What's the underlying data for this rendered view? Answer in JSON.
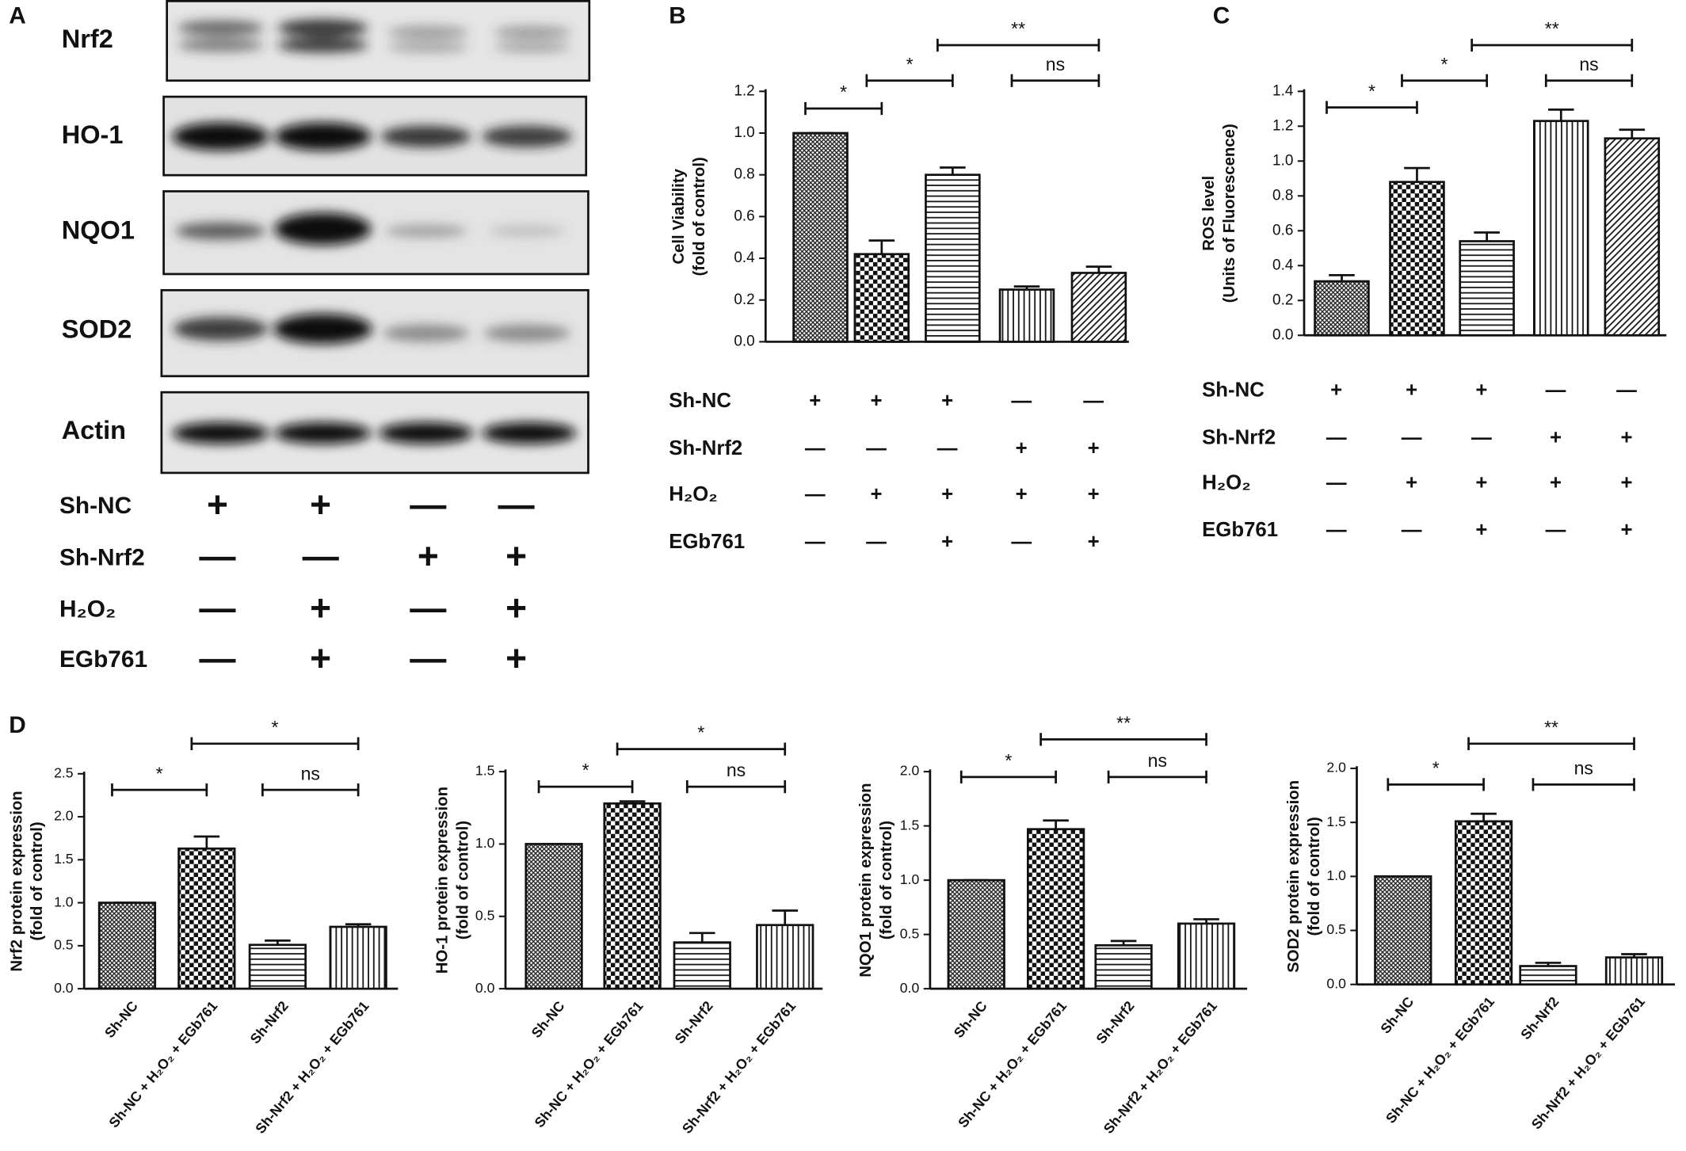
{
  "blot": {
    "panel_label": "A",
    "bands": [
      "Nrf2",
      "HO-1",
      "NQO1",
      "SOD2",
      "Actin"
    ],
    "conditions": [
      {
        "label": "Sh-NC",
        "signs": [
          "+",
          "+",
          "—",
          "—"
        ]
      },
      {
        "label": "Sh-Nrf2",
        "signs": [
          "—",
          "—",
          "+",
          "+"
        ]
      },
      {
        "label": "H₂O₂",
        "signs": [
          "—",
          "+",
          "—",
          "+"
        ]
      },
      {
        "label": "EGb761",
        "signs": [
          "—",
          "+",
          "—",
          "+"
        ]
      }
    ]
  },
  "chart_data": [
    {
      "type": "bar",
      "panel_label": "B",
      "ylabel": [
        "Cell Viability",
        "(fold of control)"
      ],
      "categories": [
        null,
        null,
        null,
        null,
        null
      ],
      "values": [
        1.0,
        0.42,
        0.8,
        0.25,
        0.33
      ],
      "errors": [
        0,
        0.065,
        0.035,
        0.015,
        0.03
      ],
      "color": "#111111",
      "ylim": [
        0,
        1.2
      ],
      "yticks": [
        {
          "value": 0,
          "label": "0.0"
        },
        0.2,
        0.4,
        0.6,
        0.8,
        {
          "value": 1,
          "label": "1.0"
        },
        1.2
      ],
      "annotations": [
        "*",
        "*",
        "**",
        "ns"
      ],
      "conditions": [
        {
          "label": "Sh-NC",
          "signs": [
            "+",
            "+",
            "+",
            "—",
            "—"
          ]
        },
        {
          "label": "Sh-Nrf2",
          "signs": [
            "—",
            "—",
            "—",
            "+",
            "+"
          ]
        },
        {
          "label": "H₂O₂",
          "signs": [
            "—",
            "+",
            "+",
            "+",
            "+"
          ]
        },
        {
          "label": "EGb761",
          "signs": [
            "—",
            "—",
            "+",
            "—",
            "+"
          ]
        }
      ]
    },
    {
      "type": "bar",
      "panel_label": "C",
      "ylabel": [
        "ROS level",
        "(Units of Fluorescence)"
      ],
      "categories": [
        null,
        null,
        null,
        null,
        null
      ],
      "values": [
        0.31,
        0.88,
        0.54,
        1.23,
        1.13
      ],
      "errors": [
        0.035,
        0.08,
        0.05,
        0.065,
        0.05
      ],
      "color": "#111111",
      "ylim": [
        0,
        1.4
      ],
      "yticks": [
        {
          "value": 0,
          "label": "0.0"
        },
        0.2,
        0.4,
        0.6,
        0.8,
        {
          "value": 1,
          "label": "1.0"
        },
        1.2,
        1.4
      ],
      "annotations": [
        "*",
        "*",
        "**",
        "ns"
      ],
      "conditions": [
        {
          "label": "Sh-NC",
          "signs": [
            "+",
            "+",
            "+",
            "—",
            "—"
          ]
        },
        {
          "label": "Sh-Nrf2",
          "signs": [
            "—",
            "—",
            "—",
            "+",
            "+"
          ]
        },
        {
          "label": "H₂O₂",
          "signs": [
            "—",
            "+",
            "+",
            "+",
            "+"
          ]
        },
        {
          "label": "EGb761",
          "signs": [
            "—",
            "—",
            "+",
            "—",
            "+"
          ]
        }
      ]
    },
    {
      "type": "bar",
      "panel_label": "D",
      "ylabel": [
        "Nrf2 protein expression",
        "(fold of control)"
      ],
      "categories": [
        "Sh-NC",
        "Sh-NC + H₂O₂ + EGb761",
        "Sh-Nrf2",
        "Sh-Nrf2 + H₂O₂ + EGb761"
      ],
      "values": [
        1.0,
        1.63,
        0.51,
        0.72
      ],
      "errors": [
        0,
        0.14,
        0.05,
        0.03
      ],
      "color": "#111111",
      "ylim": [
        0,
        2.5
      ],
      "yticks": [
        {
          "value": 0,
          "label": "0.0"
        },
        0.5,
        {
          "value": 1,
          "label": "1.0"
        },
        1.5,
        {
          "value": 2,
          "label": "2.0"
        },
        2.5
      ],
      "annotations": [
        "*",
        "*",
        "ns"
      ]
    },
    {
      "type": "bar",
      "ylabel": [
        "HO-1 protein expression",
        "(fold of control)"
      ],
      "categories": [
        "Sh-NC",
        "Sh-NC + H₂O₂ + EGb761",
        "Sh-Nrf2",
        "Sh-Nrf2 + H₂O₂ + EGb761"
      ],
      "values": [
        1.0,
        1.28,
        0.32,
        0.44
      ],
      "errors": [
        0,
        0.015,
        0.065,
        0.1
      ],
      "color": "#111111",
      "ylim": [
        0,
        1.5
      ],
      "yticks": [
        {
          "value": 0,
          "label": "0.0"
        },
        0.5,
        {
          "value": 1,
          "label": "1.0"
        },
        1.5
      ],
      "annotations": [
        "*",
        "*",
        "ns"
      ]
    },
    {
      "type": "bar",
      "ylabel": [
        "NQO1 protein expression",
        "(fold of control)"
      ],
      "categories": [
        "Sh-NC",
        "Sh-NC + H₂O₂ + EGb761",
        "Sh-Nrf2",
        "Sh-Nrf2 + H₂O₂ + EGb761"
      ],
      "values": [
        1.0,
        1.47,
        0.4,
        0.6
      ],
      "errors": [
        0,
        0.08,
        0.04,
        0.04
      ],
      "color": "#111111",
      "ylim": [
        0,
        2
      ],
      "yticks": [
        {
          "value": 0,
          "label": "0.0"
        },
        0.5,
        {
          "value": 1,
          "label": "1.0"
        },
        1.5,
        {
          "value": 2,
          "label": "2.0"
        }
      ],
      "annotations": [
        "*",
        "**",
        "ns"
      ]
    },
    {
      "type": "bar",
      "ylabel": [
        "SOD2 protein expression",
        "(fold of control)"
      ],
      "categories": [
        "Sh-NC",
        "Sh-NC + H₂O₂ + EGb761",
        "Sh-Nrf2",
        "Sh-Nrf2 + H₂O₂ + EGb761"
      ],
      "values": [
        1.0,
        1.51,
        0.17,
        0.25
      ],
      "errors": [
        0,
        0.07,
        0.03,
        0.03
      ],
      "color": "#111111",
      "ylim": [
        0,
        2
      ],
      "yticks": [
        {
          "value": 0,
          "label": "0.0"
        },
        0.5,
        {
          "value": 1,
          "label": "1.0"
        },
        1.5,
        {
          "value": 2,
          "label": "2.0"
        }
      ],
      "annotations": [
        "*",
        "**",
        "ns"
      ]
    }
  ]
}
